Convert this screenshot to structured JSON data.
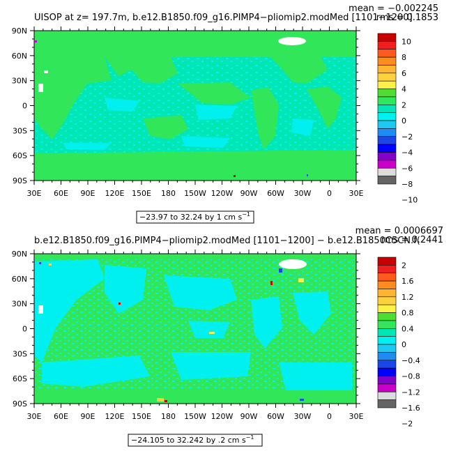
{
  "chart_data": [
    {
      "type": "heatmap",
      "title": "UISOP at z= 197.7m, b.e12.B1850.f09_g16.PIMP4−pliomip2.modMed [1101−1200]",
      "stats": {
        "mean": "mean = −0.002245",
        "rms": "rms = 0.1853"
      },
      "x_ticks": [
        "30E",
        "60E",
        "90E",
        "120E",
        "150E",
        "180",
        "150W",
        "120W",
        "90W",
        "60W",
        "30W",
        "0",
        "30E"
      ],
      "y_ticks": [
        "90N",
        "60N",
        "30N",
        "0",
        "30S",
        "60S",
        "90S"
      ],
      "colorbar": {
        "labels": [
          "10",
          "8",
          "6",
          "4",
          "2",
          "0",
          "−2",
          "−4",
          "−6",
          "−8",
          "−10"
        ],
        "colors": [
          "#c80000",
          "#f01e1e",
          "#ff5a1e",
          "#ff8c1e",
          "#ffb432",
          "#ffd23c",
          "#fff046",
          "#50dc32",
          "#32e65a",
          "#00e6b4",
          "#00f0f0",
          "#1ec8f0",
          "#1e8cf0",
          "#1e46e6",
          "#0000ff",
          "#8200c8",
          "#c800c8",
          "#dcdcdc",
          "#646464"
        ]
      },
      "range": {
        "text": "−23.97 to 32.24 by 1 cm s",
        "sup": "−1"
      }
    },
    {
      "type": "heatmap",
      "title": "b.e12.B1850.f09_g16.PIMP4−pliomip2.modMed [1101−1200] − b.e12.B1850C5CN.f(",
      "stats": {
        "mean": "mean = 0.0006697",
        "rms": "rms = 0.2441"
      },
      "x_ticks": [
        "30E",
        "60E",
        "90E",
        "120E",
        "150E",
        "180",
        "150W",
        "120W",
        "90W",
        "60W",
        "30W",
        "0",
        "30E"
      ],
      "y_ticks": [
        "90N",
        "60N",
        "30N",
        "0",
        "30S",
        "60S",
        "90S"
      ],
      "colorbar": {
        "labels": [
          "2",
          "1.6",
          "1.2",
          "0.8",
          "0.4",
          "0",
          "−0.4",
          "−0.8",
          "−1.2",
          "−1.6",
          "−2"
        ],
        "colors": [
          "#c80000",
          "#f01e1e",
          "#ff5a1e",
          "#ff8c1e",
          "#ffb432",
          "#ffd23c",
          "#fff046",
          "#50dc32",
          "#32e65a",
          "#00e6b4",
          "#00f0f0",
          "#1ec8f0",
          "#1e8cf0",
          "#1e46e6",
          "#0000ff",
          "#8200c8",
          "#c800c8",
          "#dcdcdc",
          "#646464"
        ]
      },
      "range": {
        "text": "−24.105 to 32.242 by .2 cm s",
        "sup": "−1"
      }
    }
  ]
}
